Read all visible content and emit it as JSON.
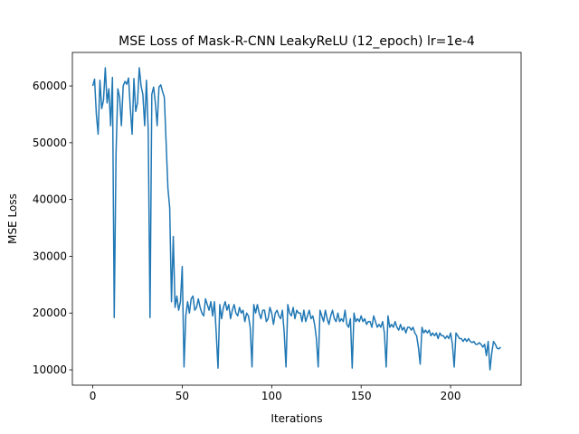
{
  "chart_data": {
    "type": "line",
    "title": "MSE Loss of Mask-R-CNN LeakyReLU (12_epoch) lr=1e-4",
    "x_label": "Iterations",
    "y_label": "MSE Loss",
    "color": "#1f77b4",
    "xlim": [
      -11.4,
      239.4
    ],
    "ylim": [
      7300,
      65900
    ],
    "xticks": [
      0,
      50,
      100,
      150,
      200
    ],
    "yticks": [
      10000,
      20000,
      30000,
      40000,
      50000,
      60000
    ],
    "x": [
      0,
      1,
      2,
      3,
      4,
      5,
      6,
      7,
      8,
      9,
      10,
      11,
      12,
      13,
      14,
      15,
      16,
      17,
      18,
      19,
      20,
      21,
      22,
      23,
      24,
      25,
      26,
      27,
      28,
      29,
      30,
      31,
      32,
      33,
      34,
      35,
      36,
      37,
      38,
      39,
      40,
      41,
      42,
      43,
      44,
      45,
      46,
      47,
      48,
      49,
      50,
      51,
      52,
      53,
      54,
      55,
      56,
      57,
      58,
      59,
      60,
      61,
      62,
      63,
      64,
      65,
      66,
      67,
      68,
      69,
      70,
      71,
      72,
      73,
      74,
      75,
      76,
      77,
      78,
      79,
      80,
      81,
      82,
      83,
      84,
      85,
      86,
      87,
      88,
      89,
      90,
      91,
      92,
      93,
      94,
      95,
      96,
      97,
      98,
      99,
      100,
      101,
      102,
      103,
      104,
      105,
      106,
      107,
      108,
      109,
      110,
      111,
      112,
      113,
      114,
      115,
      116,
      117,
      118,
      119,
      120,
      121,
      122,
      123,
      124,
      125,
      126,
      127,
      128,
      129,
      130,
      131,
      132,
      133,
      134,
      135,
      136,
      137,
      138,
      139,
      140,
      141,
      142,
      143,
      144,
      145,
      146,
      147,
      148,
      149,
      150,
      151,
      152,
      153,
      154,
      155,
      156,
      157,
      158,
      159,
      160,
      161,
      162,
      163,
      164,
      165,
      166,
      167,
      168,
      169,
      170,
      171,
      172,
      173,
      174,
      175,
      176,
      177,
      178,
      179,
      180,
      181,
      182,
      183,
      184,
      185,
      186,
      187,
      188,
      189,
      190,
      191,
      192,
      193,
      194,
      195,
      196,
      197,
      198,
      199,
      200,
      201,
      202,
      203,
      204,
      205,
      206,
      207,
      208,
      209,
      210,
      211,
      212,
      213,
      214,
      215,
      216,
      217,
      218,
      219,
      220,
      221,
      222,
      223,
      224,
      225,
      226,
      227,
      228
    ],
    "values": [
      60000,
      61200,
      55000,
      51500,
      61000,
      56000,
      57500,
      63200,
      57000,
      59500,
      53000,
      61500,
      19200,
      48000,
      59500,
      58000,
      53000,
      60000,
      60800,
      60300,
      61400,
      56000,
      51500,
      61300,
      55500,
      57000,
      63200,
      60000,
      58500,
      53000,
      61000,
      52000,
      19200,
      58500,
      59800,
      57000,
      53000,
      59800,
      60200,
      59000,
      58000,
      50000,
      42000,
      38500,
      22000,
      33500,
      21000,
      23000,
      20500,
      22000,
      28200,
      10500,
      19500,
      22000,
      20000,
      22500,
      23000,
      20500,
      21000,
      22500,
      21000,
      20000,
      19500,
      22500,
      21500,
      20500,
      22000,
      19500,
      22000,
      16500,
      10300,
      21500,
      19000,
      21000,
      22000,
      20500,
      21500,
      19000,
      20500,
      21500,
      20000,
      19500,
      21000,
      20000,
      20500,
      18500,
      20000,
      19500,
      17500,
      10500,
      21500,
      20000,
      21500,
      20000,
      19000,
      20500,
      20500,
      18500,
      19000,
      21000,
      20000,
      18000,
      20000,
      20500,
      19500,
      19000,
      20500,
      16500,
      10500,
      21500,
      20000,
      19500,
      21000,
      19000,
      20500,
      20000,
      20000,
      18500,
      20500,
      18500,
      19500,
      20500,
      19000,
      19500,
      18000,
      15500,
      10500,
      20500,
      19500,
      18500,
      20500,
      19000,
      18000,
      19500,
      20500,
      19000,
      18500,
      20000,
      18500,
      19000,
      18500,
      20500,
      18000,
      17500,
      19000,
      10300,
      20000,
      18500,
      19000,
      18500,
      19500,
      18500,
      19000,
      18000,
      18500,
      18500,
      17500,
      19500,
      18500,
      17500,
      18000,
      17500,
      18500,
      16500,
      10500,
      19500,
      17500,
      18000,
      17500,
      18500,
      17500,
      17000,
      18000,
      17000,
      17500,
      16500,
      17500,
      17500,
      17000,
      17500,
      16500,
      16000,
      14000,
      11000,
      17500,
      16500,
      17000,
      16500,
      17000,
      16000,
      16500,
      16000,
      16500,
      15500,
      16500,
      16000,
      16000,
      15500,
      16000,
      15500,
      16500,
      14500,
      10500,
      16500,
      16000,
      15500,
      15500,
      15000,
      15500,
      15000,
      15500,
      15000,
      14800,
      15000,
      14500,
      14500,
      14800,
      14500,
      14000,
      14500,
      12500,
      15000,
      10000,
      13000,
      15000,
      14500,
      13800,
      13700,
      14000
    ]
  }
}
